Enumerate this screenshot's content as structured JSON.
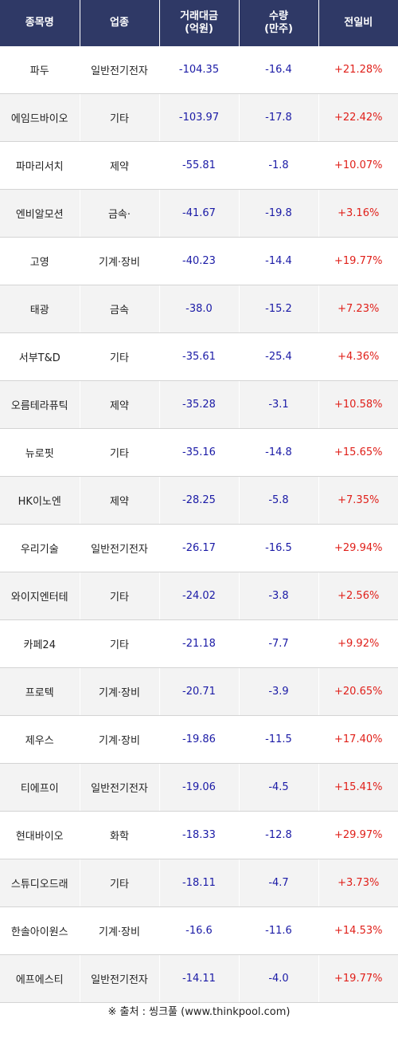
{
  "header": {
    "name": "종목명",
    "sector": "업종",
    "amount_line1": "거래대금",
    "amount_line2": "(억원)",
    "volume_line1": "수량",
    "volume_line2": "(만주)",
    "change": "전일비"
  },
  "rows": [
    {
      "name": "파두",
      "sector": "일반전기전자",
      "amount": "-104.35",
      "volume": "-16.4",
      "change": "+21.28%"
    },
    {
      "name": "에임드바이오",
      "sector": "기타",
      "amount": "-103.97",
      "volume": "-17.8",
      "change": "+22.42%"
    },
    {
      "name": "파마리서치",
      "sector": "제약",
      "amount": "-55.81",
      "volume": "-1.8",
      "change": "+10.07%"
    },
    {
      "name": "엔비알모션",
      "sector": "금속·",
      "amount": "-41.67",
      "volume": "-19.8",
      "change": "+3.16%"
    },
    {
      "name": "고영",
      "sector": "기계·장비",
      "amount": "-40.23",
      "volume": "-14.4",
      "change": "+19.77%"
    },
    {
      "name": "태광",
      "sector": "금속",
      "amount": "-38.0",
      "volume": "-15.2",
      "change": "+7.23%"
    },
    {
      "name": "서부T&D",
      "sector": "기타",
      "amount": "-35.61",
      "volume": "-25.4",
      "change": "+4.36%"
    },
    {
      "name": "오름테라퓨틱",
      "sector": "제약",
      "amount": "-35.28",
      "volume": "-3.1",
      "change": "+10.58%"
    },
    {
      "name": "뉴로핏",
      "sector": "기타",
      "amount": "-35.16",
      "volume": "-14.8",
      "change": "+15.65%"
    },
    {
      "name": "HK이노엔",
      "sector": "제약",
      "amount": "-28.25",
      "volume": "-5.8",
      "change": "+7.35%"
    },
    {
      "name": "우리기술",
      "sector": "일반전기전자",
      "amount": "-26.17",
      "volume": "-16.5",
      "change": "+29.94%"
    },
    {
      "name": "와이지엔터테",
      "sector": "기타",
      "amount": "-24.02",
      "volume": "-3.8",
      "change": "+2.56%"
    },
    {
      "name": "카페24",
      "sector": "기타",
      "amount": "-21.18",
      "volume": "-7.7",
      "change": "+9.92%"
    },
    {
      "name": "프로텍",
      "sector": "기계·장비",
      "amount": "-20.71",
      "volume": "-3.9",
      "change": "+20.65%"
    },
    {
      "name": "제우스",
      "sector": "기계·장비",
      "amount": "-19.86",
      "volume": "-11.5",
      "change": "+17.40%"
    },
    {
      "name": "티에프이",
      "sector": "일반전기전자",
      "amount": "-19.06",
      "volume": "-4.5",
      "change": "+15.41%"
    },
    {
      "name": "현대바이오",
      "sector": "화학",
      "amount": "-18.33",
      "volume": "-12.8",
      "change": "+29.97%"
    },
    {
      "name": "스튜디오드래",
      "sector": "기타",
      "amount": "-18.11",
      "volume": "-4.7",
      "change": "+3.73%"
    },
    {
      "name": "한솔아이원스",
      "sector": "기계·장비",
      "amount": "-16.6",
      "volume": "-11.6",
      "change": "+14.53%"
    },
    {
      "name": "에프에스티",
      "sector": "일반전기전자",
      "amount": "-14.11",
      "volume": "-4.0",
      "change": "+19.77%"
    }
  ],
  "footer": {
    "source": "※ 출처 : 씽크풀 (www.thinkpool.com)"
  },
  "colors": {
    "header_bg": "#2f3966",
    "negative_value": "#1a1aa6",
    "positive_change": "#e0201a",
    "alt_row_bg": "#f3f3f3"
  }
}
